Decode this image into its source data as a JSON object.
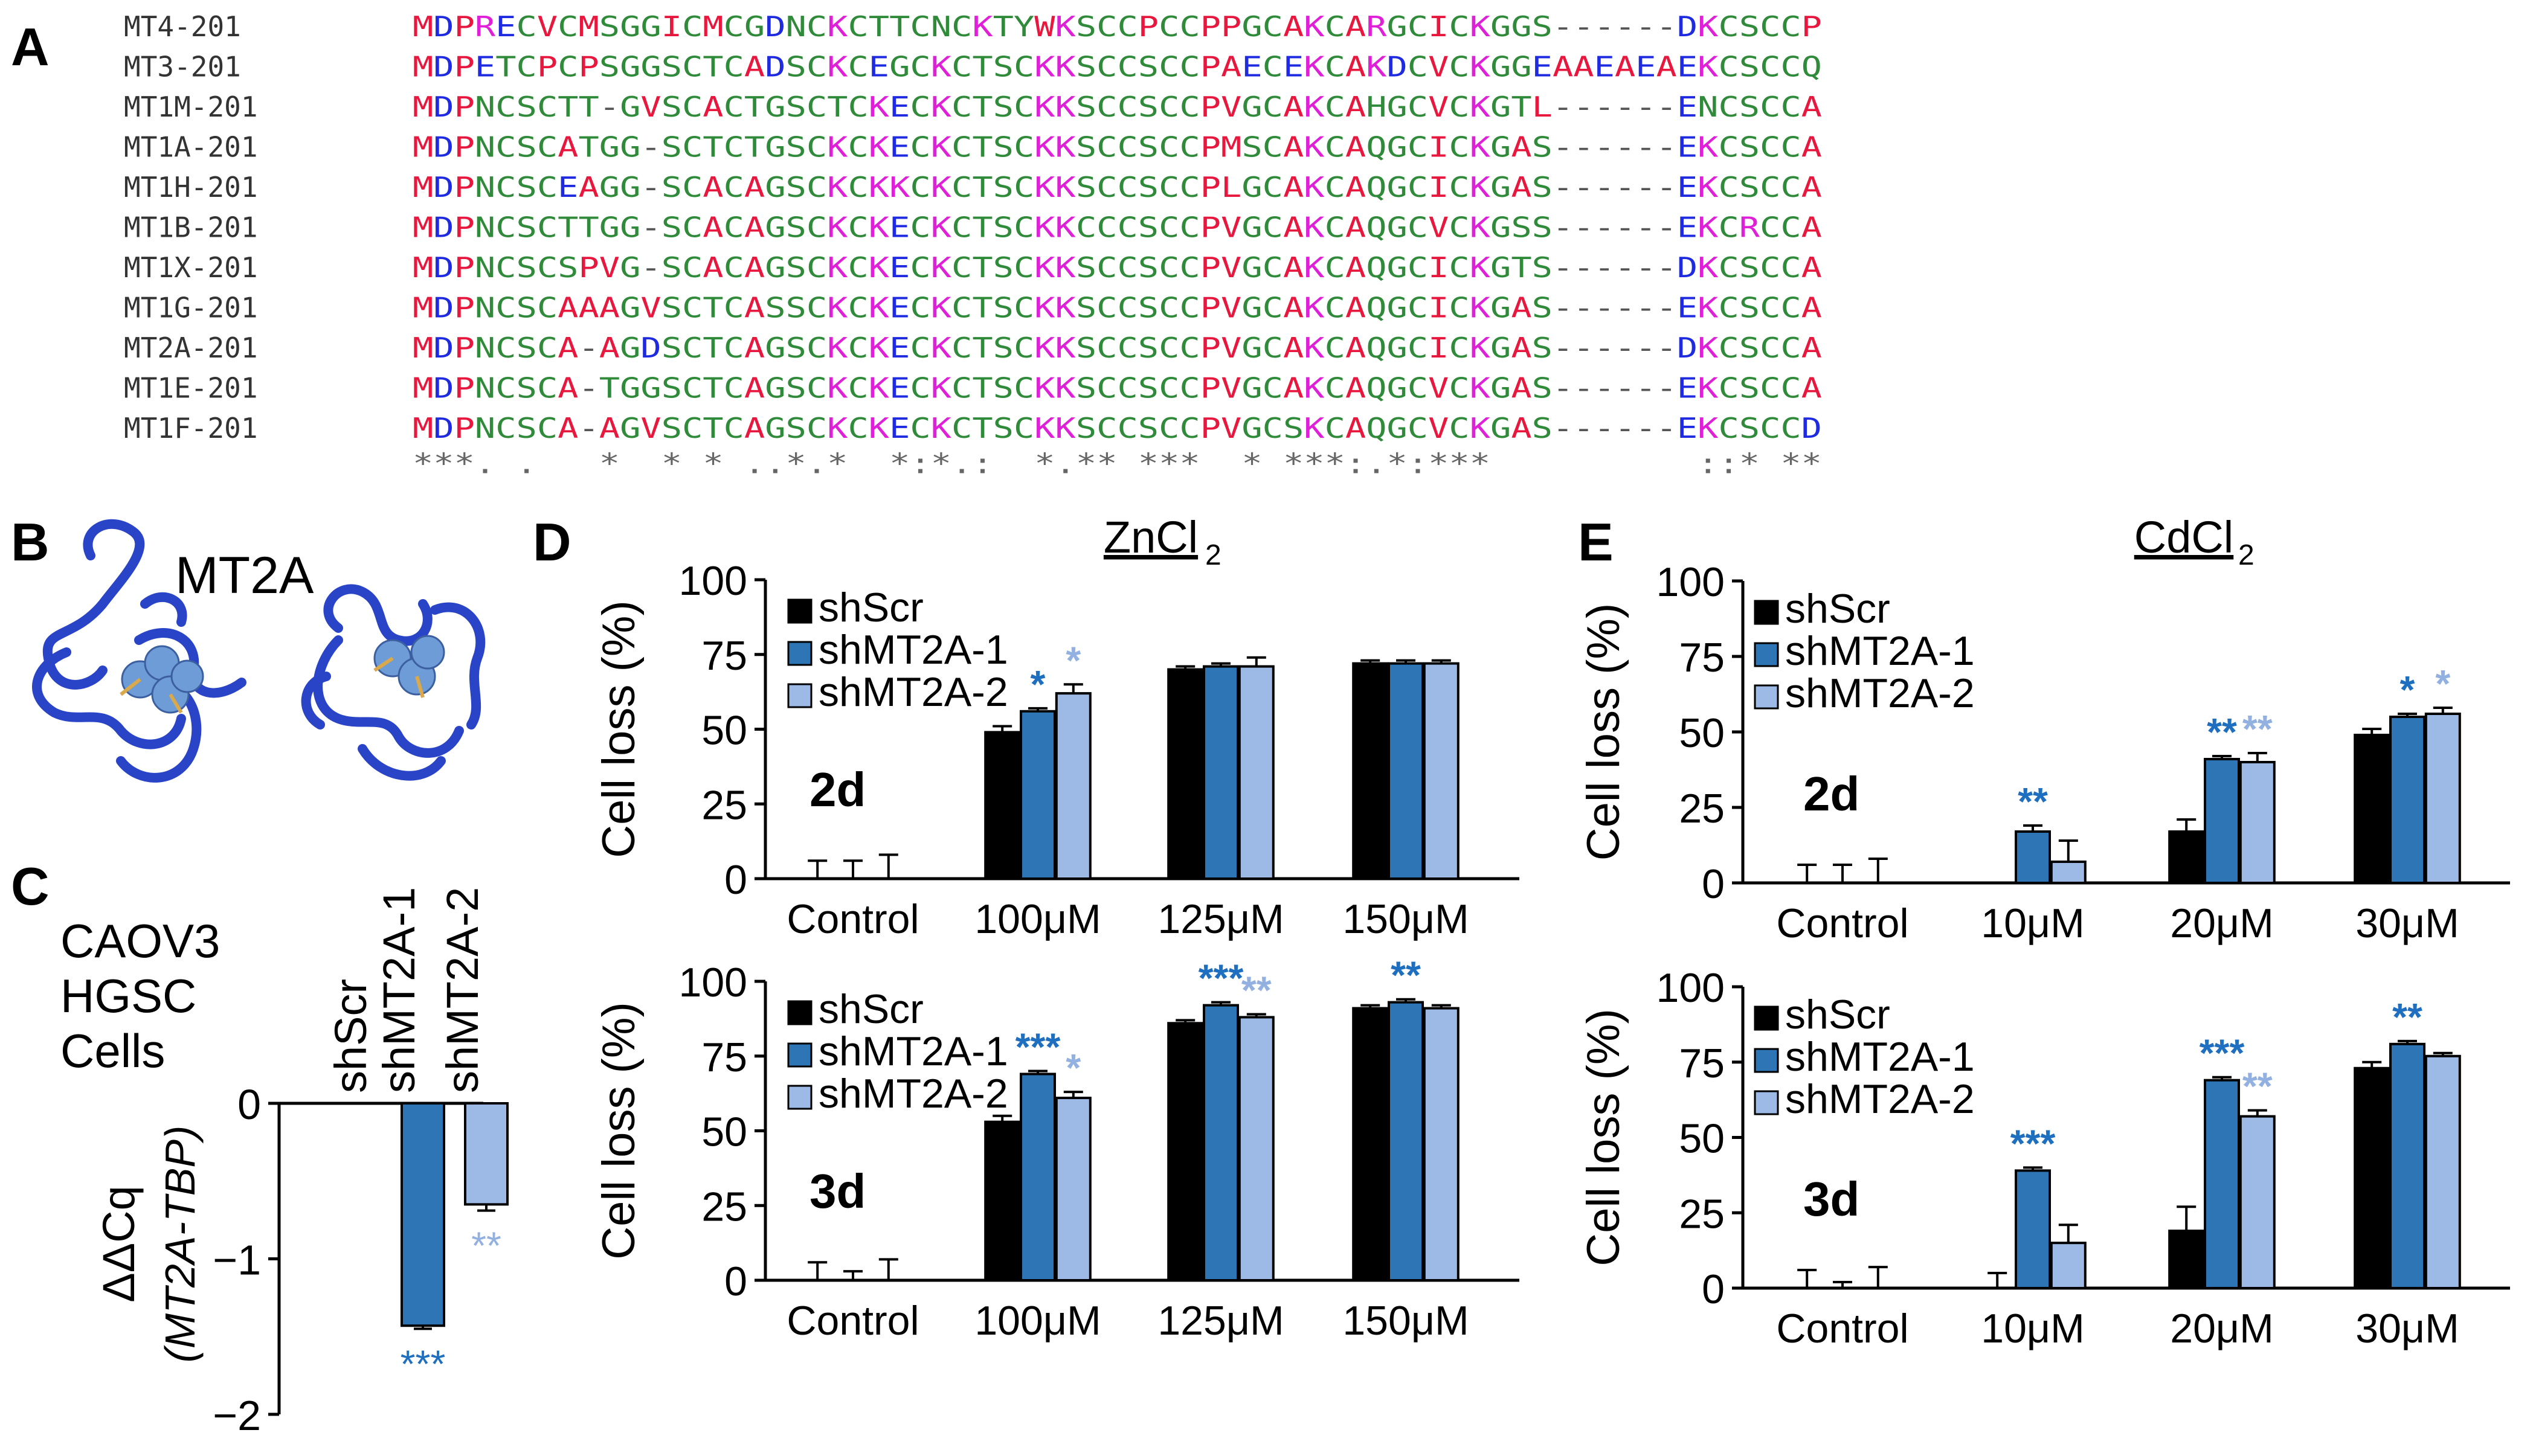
{
  "panel_labels": {
    "a": "A",
    "b": "B",
    "c": "C",
    "d": "D",
    "e": "E"
  },
  "colors": {
    "black": "#000000",
    "mid_blue": "#2E75B6",
    "light_blue": "#9DB9E5",
    "star_dark": "#1F6FC0",
    "star_light": "#93B1E0",
    "protein": "#2A44C8",
    "zinc": "#6E9CD6",
    "aa_red": "#E8173E",
    "aa_green": "#2F8A3A",
    "aa_magenta": "#E020D8",
    "aa_blue": "#1E2BE0",
    "text_gray": "#555555"
  },
  "alignment": {
    "rows": [
      {
        "name": "MT4-201",
        "seq": "MDPRECVCMSGGICMCGDNCKCTTCNCKTYWKSCCPCCPPGCAKCARGCICKGGS------DKCSCCP"
      },
      {
        "name": "MT3-201",
        "seq": "MDPETCPCPSGGSCTCADSCKCEGCKCTSCKKSCCSCCPAECEKCAKDCVCKGGEAAEAEAEKCSCCQ"
      },
      {
        "name": "MT1M-201",
        "seq": "MDPNCSCTT-GVSCACTGSCTCKECKCTSCKKSCCSCCPVGCAKCAHGCVCKGTL------ENCSCCA"
      },
      {
        "name": "MT1A-201",
        "seq": "MDPNCSCATGG-SCTCTGSCKCKECKCTSCKKSCCSCCPMSCAKCAQGCICKGAS------EKCSCCA"
      },
      {
        "name": "MT1H-201",
        "seq": "MDPNCSCEAGG-SCACAGSCKCKKCKCTSCKKSCCSCCPLGCAKCAQGCICKGAS------EKCSCCA"
      },
      {
        "name": "MT1B-201",
        "seq": "MDPNCSCTTGG-SCACAGSCKCKECKCTSCKKCCCSCCPVGCAKCAQGCVCKGSS------EKCRCCA"
      },
      {
        "name": "MT1X-201",
        "seq": "MDPNCSCSPVG-SCACAGSCKCKECKCTSCKKSCCSCCPVGCAKCAQGCICKGTS------DKCSCCA"
      },
      {
        "name": "MT1G-201",
        "seq": "MDPNCSCAAAGVSCTCASSCKCKECKCTSCKKSCCSCCPVGCAKCAQGCICKGAS------EKCSCCA"
      },
      {
        "name": "MT2A-201",
        "seq": "MDPNCSCA-AGDSCTCAGSCKCKECKCTSCKKSCCSCCPVGCAKCAQGCICKGAS------DKCSCCA"
      },
      {
        "name": "MT1E-201",
        "seq": "MDPNCSCA-TGGSCTCAGSCKCKECKCTSCKKSCCSCCPVGCAKCAQGCVCKGAS------EKCSCCA"
      },
      {
        "name": "MT1F-201",
        "seq": "MDPNCSCA-AGVSCTCAGSCKCKECKCTSCKKSCCSCCPVGCSKCAQGCVCKGAS------EKCSCCD"
      }
    ],
    "consensus": "***. .   *  * * ..*.*  *:*.:  *.** ***  * ***:.*:***          ::* **"
  },
  "structure": {
    "title": "MT2A"
  },
  "chart_data": [
    {
      "id": "C",
      "type": "bar",
      "text_lines": [
        "CAOV3",
        "HGSC",
        "Cells"
      ],
      "categories": [
        "shScr",
        "shMT2A-1",
        "shMT2A-2"
      ],
      "values": [
        0,
        -1.43,
        -0.65
      ],
      "errors": [
        0,
        0.02,
        0.04
      ],
      "significance": [
        "",
        "***",
        "**"
      ],
      "ylim": [
        -2,
        0
      ],
      "yticks": [
        "0",
        "−1",
        "−2"
      ],
      "ylabel": "ΔΔCq",
      "ylabel_sub": "(MT2A-TBP)"
    },
    {
      "id": "D",
      "type": "bar",
      "title": "ZnCl",
      "title_sub": "2",
      "ylabel": "Cell loss (%)",
      "yticks": [
        "0",
        "25",
        "50",
        "75",
        "100"
      ],
      "ylim": [
        0,
        100
      ],
      "legend": [
        "shScr",
        "shMT2A-1",
        "shMT2A-2"
      ],
      "categories": [
        "Control",
        "100μM",
        "125μM",
        "150μM"
      ],
      "subplots": [
        {
          "label": "2d",
          "series": [
            {
              "name": "shScr",
              "values": [
                0,
                49,
                70,
                72
              ],
              "errors": [
                6,
                2,
                1,
                1
              ]
            },
            {
              "name": "shMT2A-1",
              "values": [
                0,
                56,
                71,
                72
              ],
              "errors": [
                6,
                1,
                1,
                1
              ]
            },
            {
              "name": "shMT2A-2",
              "values": [
                0,
                62,
                71,
                72
              ],
              "errors": [
                8,
                3,
                3,
                1
              ]
            }
          ],
          "significance": [
            [
              "",
              "",
              "",
              ""
            ],
            [
              "",
              "*",
              "",
              ""
            ],
            [
              "",
              "*",
              "",
              ""
            ]
          ]
        },
        {
          "label": "3d",
          "series": [
            {
              "name": "shScr",
              "values": [
                0,
                53,
                86,
                91
              ],
              "errors": [
                6,
                2,
                1,
                1
              ]
            },
            {
              "name": "shMT2A-1",
              "values": [
                0,
                69,
                92,
                93
              ],
              "errors": [
                3,
                1,
                1,
                1
              ]
            },
            {
              "name": "shMT2A-2",
              "values": [
                0,
                61,
                88,
                91
              ],
              "errors": [
                7,
                2,
                1,
                1
              ]
            }
          ],
          "significance": [
            [
              "",
              "",
              "",
              ""
            ],
            [
              "",
              "***",
              "***",
              "**"
            ],
            [
              "",
              "*",
              "**",
              ""
            ]
          ]
        }
      ]
    },
    {
      "id": "E",
      "type": "bar",
      "title": "CdCl",
      "title_sub": "2",
      "ylabel": "Cell loss (%)",
      "yticks": [
        "0",
        "25",
        "50",
        "75",
        "100"
      ],
      "ylim": [
        0,
        100
      ],
      "legend": [
        "shScr",
        "shMT2A-1",
        "shMT2A-2"
      ],
      "categories": [
        "Control",
        "10μM",
        "20μM",
        "30μM"
      ],
      "subplots": [
        {
          "label": "2d",
          "series": [
            {
              "name": "shScr",
              "values": [
                0,
                0,
                17,
                49
              ],
              "errors": [
                6,
                0,
                4,
                2
              ]
            },
            {
              "name": "shMT2A-1",
              "values": [
                0,
                17,
                41,
                55
              ],
              "errors": [
                6,
                2,
                1,
                1
              ]
            },
            {
              "name": "shMT2A-2",
              "values": [
                0,
                7,
                40,
                56
              ],
              "errors": [
                8,
                7,
                3,
                2
              ]
            }
          ],
          "significance": [
            [
              "",
              "",
              "",
              ""
            ],
            [
              "",
              "**",
              "**",
              "*"
            ],
            [
              "",
              "",
              "**",
              "*"
            ]
          ]
        },
        {
          "label": "3d",
          "series": [
            {
              "name": "shScr",
              "values": [
                0,
                0,
                19,
                73
              ],
              "errors": [
                6,
                5,
                8,
                2
              ]
            },
            {
              "name": "shMT2A-1",
              "values": [
                0,
                39,
                69,
                81
              ],
              "errors": [
                2,
                1,
                1,
                1
              ]
            },
            {
              "name": "shMT2A-2",
              "values": [
                0,
                15,
                57,
                77
              ],
              "errors": [
                7,
                6,
                2,
                1
              ]
            }
          ],
          "significance": [
            [
              "",
              "",
              "",
              ""
            ],
            [
              "",
              "***",
              "***",
              "**"
            ],
            [
              "",
              "",
              "**",
              ""
            ]
          ]
        }
      ]
    }
  ]
}
